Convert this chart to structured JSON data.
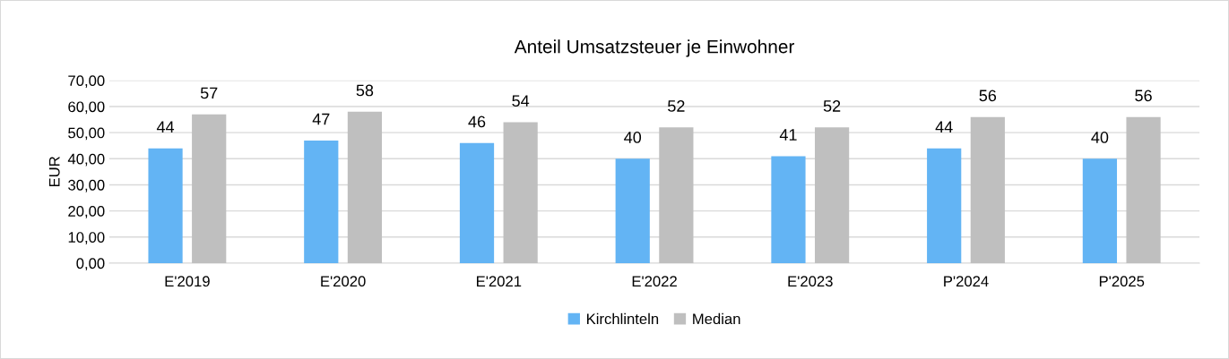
{
  "chart_data": {
    "type": "bar",
    "title": "Anteil Umsatzsteuer je Einwohner",
    "ylabel": "EUR",
    "categories": [
      "E'2019",
      "E'2020",
      "E'2021",
      "E'2022",
      "E'2023",
      "P'2024",
      "P'2025"
    ],
    "series": [
      {
        "name": "Kirchlinteln",
        "color": "#63b4f4",
        "values": [
          44,
          47,
          46,
          40,
          41,
          44,
          40
        ]
      },
      {
        "name": "Median",
        "color": "#bfbfbf",
        "values": [
          57,
          58,
          54,
          52,
          52,
          56,
          56
        ]
      }
    ],
    "ylim": [
      0,
      70
    ],
    "yticks": [
      {
        "value": 0,
        "label": "0,00"
      },
      {
        "value": 10,
        "label": "10,00"
      },
      {
        "value": 20,
        "label": "20,00"
      },
      {
        "value": 30,
        "label": "30,00"
      },
      {
        "value": 40,
        "label": "40,00"
      },
      {
        "value": 50,
        "label": "50,00"
      },
      {
        "value": 60,
        "label": "60,00"
      },
      {
        "value": 70,
        "label": "70,00"
      }
    ],
    "grid": "y",
    "legend": "bottom",
    "data_labels": true
  }
}
